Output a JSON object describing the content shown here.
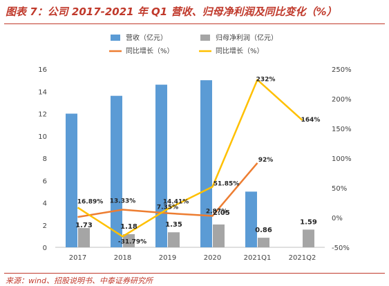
{
  "title": "图表 7：公司 2017-2021 年 Q1 营收、归母净利润及同比变化（%）",
  "source": "来源：wind、招股说明书、中泰证券研究所",
  "chart_data": {
    "type": "bar",
    "categories": [
      "2017",
      "2018",
      "2019",
      "2020",
      "2021Q1",
      "2021Q2"
    ],
    "y_left": {
      "range": [
        0,
        16
      ],
      "ticks": [
        "0",
        "2",
        "4",
        "6",
        "8",
        "10",
        "12",
        "14",
        "16"
      ]
    },
    "y_right": {
      "range": [
        -50,
        250
      ],
      "ticks": [
        "-50%",
        "0%",
        "50%",
        "100%",
        "150%",
        "200%",
        "250%"
      ]
    },
    "legend_position": "top",
    "series": [
      {
        "name": "营收（亿元）",
        "kind": "bar",
        "axis": "left",
        "color": "#5b9bd5",
        "values": [
          12.0,
          13.6,
          14.6,
          15.0,
          5.0,
          null
        ],
        "labels": []
      },
      {
        "name": "归母净利润（亿元）",
        "kind": "bar",
        "axis": "left",
        "color": "#a5a5a5",
        "values": [
          1.73,
          1.18,
          1.35,
          2.05,
          0.86,
          1.59
        ],
        "labels": [
          "1.73",
          "1.18",
          "1.35",
          "2.05",
          "0.86",
          "1.59"
        ]
      },
      {
        "name": "同比增长（%）",
        "kind": "line",
        "axis": "right",
        "color": "#ed7d31",
        "values": [
          1,
          13.33,
          7.35,
          2.87,
          92,
          null
        ],
        "labels": [
          "",
          "13.33%",
          "7.35%",
          "2.87%",
          "92%",
          ""
        ]
      },
      {
        "name": "同比增长（%）",
        "kind": "line",
        "axis": "right",
        "color": "#ffc000",
        "values": [
          16.89,
          -31.79,
          14.41,
          51.85,
          232,
          164
        ],
        "labels": [
          "16.89%",
          "-31.79%",
          "14.41%",
          "51.85%",
          "232%",
          "164%"
        ]
      }
    ]
  }
}
